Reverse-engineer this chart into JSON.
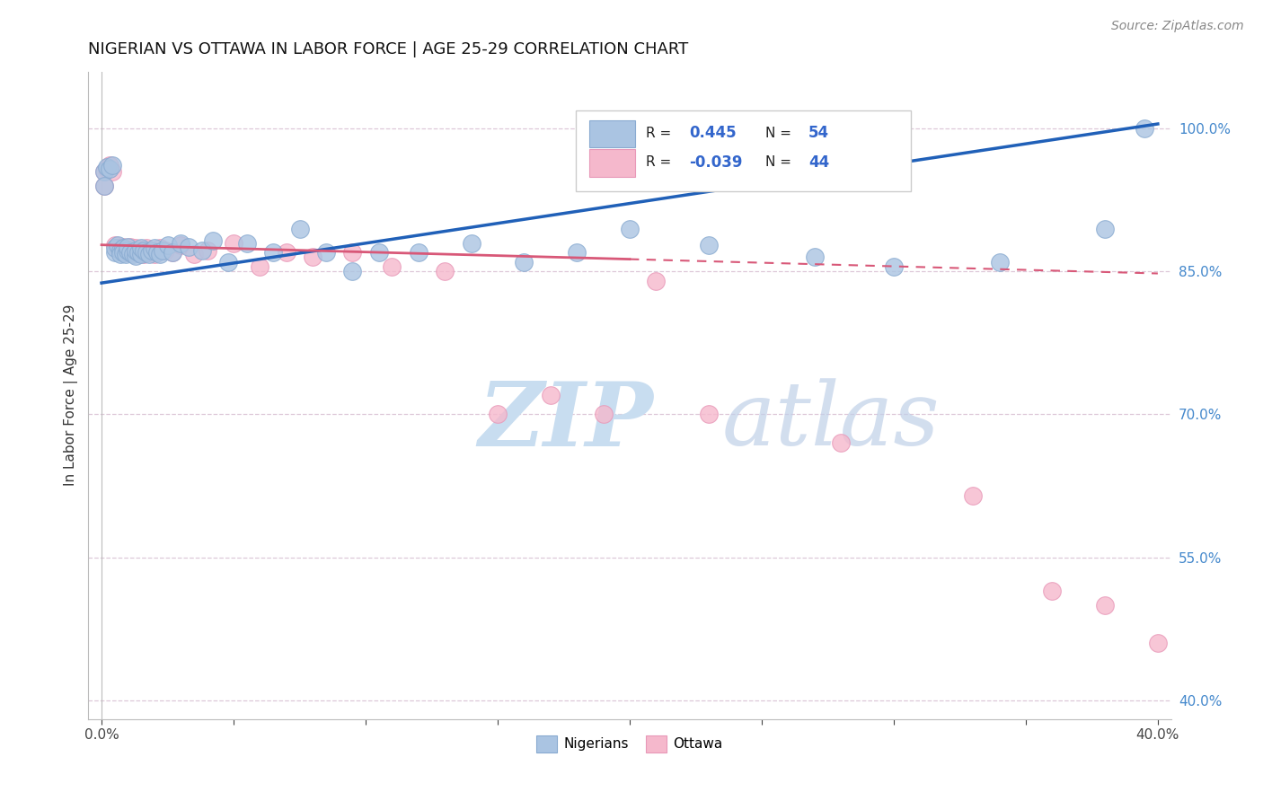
{
  "title": "NIGERIAN VS OTTAWA IN LABOR FORCE | AGE 25-29 CORRELATION CHART",
  "source_text": "Source: ZipAtlas.com",
  "ylabel": "In Labor Force | Age 25-29",
  "xlim": [
    -0.005,
    0.405
  ],
  "ylim": [
    0.38,
    1.06
  ],
  "ytick_labels": [
    "40.0%",
    "55.0%",
    "70.0%",
    "85.0%",
    "100.0%"
  ],
  "ytick_vals": [
    0.4,
    0.55,
    0.7,
    0.85,
    1.0
  ],
  "xtick_vals": [
    0.0,
    0.05,
    0.1,
    0.15,
    0.2,
    0.25,
    0.3,
    0.35,
    0.4
  ],
  "legend_blue_R": "0.445",
  "legend_blue_N": "54",
  "legend_pink_R": "-0.039",
  "legend_pink_N": "44",
  "legend_labels": [
    "Nigerians",
    "Ottawa"
  ],
  "blue_color": "#aac4e2",
  "pink_color": "#f5b8cc",
  "blue_edge_color": "#88aad0",
  "pink_edge_color": "#e898b8",
  "trendline_blue_color": "#2060b8",
  "trendline_pink_color": "#d85878",
  "blue_trend": [
    0.0,
    0.4,
    0.838,
    1.005
  ],
  "pink_trend_solid": [
    0.0,
    0.2,
    0.878,
    0.863
  ],
  "pink_trend_dash": [
    0.2,
    0.4,
    0.863,
    0.848
  ],
  "blue_scatter_x": [
    0.001,
    0.001,
    0.002,
    0.003,
    0.004,
    0.005,
    0.005,
    0.006,
    0.007,
    0.007,
    0.008,
    0.008,
    0.009,
    0.01,
    0.01,
    0.011,
    0.012,
    0.013,
    0.013,
    0.014,
    0.015,
    0.015,
    0.016,
    0.017,
    0.018,
    0.019,
    0.02,
    0.021,
    0.022,
    0.023,
    0.025,
    0.027,
    0.03,
    0.033,
    0.038,
    0.042,
    0.048,
    0.055,
    0.065,
    0.075,
    0.085,
    0.095,
    0.105,
    0.12,
    0.14,
    0.16,
    0.18,
    0.2,
    0.23,
    0.27,
    0.3,
    0.34,
    0.38,
    0.395
  ],
  "blue_scatter_y": [
    0.955,
    0.94,
    0.96,
    0.958,
    0.962,
    0.87,
    0.875,
    0.878,
    0.872,
    0.868,
    0.875,
    0.87,
    0.868,
    0.872,
    0.876,
    0.87,
    0.868,
    0.866,
    0.872,
    0.87,
    0.868,
    0.875,
    0.872,
    0.87,
    0.868,
    0.872,
    0.875,
    0.87,
    0.868,
    0.872,
    0.878,
    0.87,
    0.88,
    0.876,
    0.872,
    0.882,
    0.86,
    0.88,
    0.87,
    0.895,
    0.87,
    0.85,
    0.87,
    0.87,
    0.88,
    0.86,
    0.87,
    0.895,
    0.878,
    0.865,
    0.855,
    0.86,
    0.895,
    1.0
  ],
  "pink_scatter_x": [
    0.001,
    0.001,
    0.002,
    0.003,
    0.004,
    0.005,
    0.006,
    0.007,
    0.008,
    0.009,
    0.01,
    0.011,
    0.012,
    0.013,
    0.014,
    0.015,
    0.016,
    0.017,
    0.018,
    0.019,
    0.02,
    0.022,
    0.024,
    0.027,
    0.03,
    0.035,
    0.04,
    0.05,
    0.06,
    0.07,
    0.08,
    0.095,
    0.11,
    0.13,
    0.15,
    0.17,
    0.19,
    0.21,
    0.23,
    0.28,
    0.33,
    0.36,
    0.38,
    0.4
  ],
  "pink_scatter_y": [
    0.955,
    0.94,
    0.958,
    0.962,
    0.955,
    0.878,
    0.875,
    0.872,
    0.876,
    0.87,
    0.872,
    0.876,
    0.87,
    0.875,
    0.872,
    0.87,
    0.868,
    0.875,
    0.872,
    0.87,
    0.868,
    0.875,
    0.872,
    0.87,
    0.878,
    0.868,
    0.872,
    0.88,
    0.855,
    0.87,
    0.865,
    0.87,
    0.855,
    0.85,
    0.7,
    0.72,
    0.7,
    0.84,
    0.7,
    0.67,
    0.615,
    0.515,
    0.5,
    0.46
  ],
  "background_color": "#ffffff",
  "grid_color": "#ddc8d8",
  "watermark_zip_color": "#c8ddf0",
  "watermark_atlas_color": "#c0d0e8"
}
